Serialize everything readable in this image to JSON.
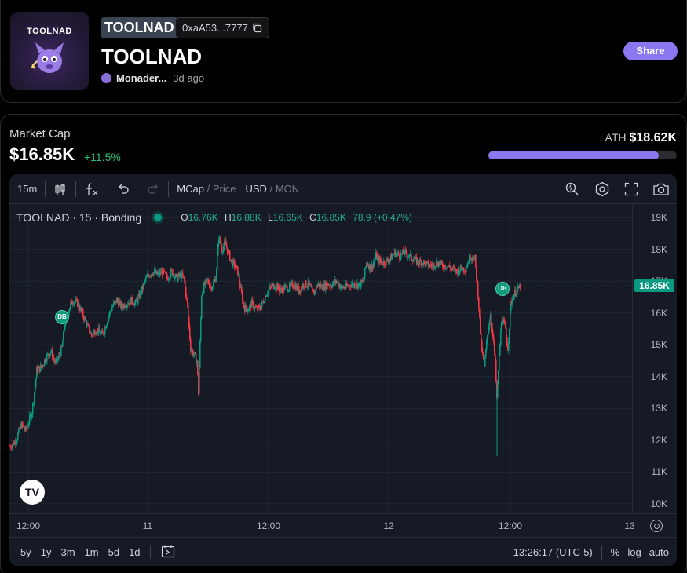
{
  "token": {
    "logo_text": "TOOLNAD",
    "ticker": "TOOLNAD",
    "address": "0xaA53...7777",
    "name": "TOOLNAD",
    "creator": "Monader...",
    "age": "3d ago",
    "share_label": "Share"
  },
  "market": {
    "label": "Market Cap",
    "value": "$16.85K",
    "change": "+11.5%",
    "ath_label": "ATH",
    "ath_value": "$18.62K",
    "ath_progress": 0.905,
    "accent": "#8a78f0",
    "up_color": "#089981",
    "down_color": "#f23645"
  },
  "toolbar": {
    "interval": "15m",
    "mcap": "MCap",
    "price": "Price",
    "usd": "USD",
    "mon": "MON",
    "slash": "/"
  },
  "legend": {
    "title": "TOOLNAD · 15 · Bonding",
    "o_label": "O",
    "o": "16.76K",
    "h_label": "H",
    "h": "16.88K",
    "l_label": "L",
    "l": "16.65K",
    "c_label": "C",
    "c": "16.85K",
    "change": "78.9 (+0.47%)"
  },
  "chart_data": {
    "type": "candlestick",
    "y_unit": "K",
    "ylim": [
      9.7,
      19.4
    ],
    "yticks": [
      "19K",
      "18K",
      "17K",
      "16K",
      "15K",
      "14K",
      "13K",
      "12K",
      "11K",
      "10K"
    ],
    "ytick_values": [
      19,
      18,
      17,
      16,
      15,
      14,
      13,
      12,
      11,
      10
    ],
    "xticks": [
      "12:00",
      "11",
      "12:00",
      "12",
      "12:00",
      "13"
    ],
    "last_price_label": "16.85K",
    "last_price": 16.85,
    "markers": [
      "DB",
      "DB"
    ],
    "close_path": [
      [
        0,
        11.8
      ],
      [
        8,
        12.0
      ],
      [
        14,
        12.5
      ],
      [
        20,
        12.3
      ],
      [
        28,
        12.9
      ],
      [
        32,
        13.7
      ],
      [
        34,
        14.2
      ],
      [
        40,
        14.3
      ],
      [
        46,
        14.6
      ],
      [
        52,
        14.8
      ],
      [
        58,
        14.4
      ],
      [
        62,
        14.6
      ],
      [
        66,
        14.9
      ],
      [
        70,
        15.7
      ],
      [
        76,
        16.2
      ],
      [
        80,
        16.4
      ],
      [
        86,
        16.3
      ],
      [
        92,
        16.0
      ],
      [
        98,
        15.6
      ],
      [
        104,
        15.3
      ],
      [
        110,
        15.5
      ],
      [
        118,
        15.3
      ],
      [
        124,
        15.8
      ],
      [
        130,
        16.2
      ],
      [
        136,
        16.4
      ],
      [
        142,
        16.2
      ],
      [
        148,
        16.3
      ],
      [
        154,
        16.4
      ],
      [
        160,
        16.3
      ],
      [
        166,
        16.6
      ],
      [
        172,
        17.0
      ],
      [
        176,
        17.2
      ],
      [
        182,
        17.3
      ],
      [
        188,
        17.2
      ],
      [
        194,
        17.3
      ],
      [
        200,
        17.1
      ],
      [
        206,
        17.3
      ],
      [
        212,
        17.1
      ],
      [
        218,
        17.2
      ],
      [
        222,
        17.0
      ],
      [
        226,
        16.2
      ],
      [
        230,
        14.9
      ],
      [
        234,
        14.7
      ],
      [
        238,
        14.5
      ],
      [
        240,
        13.5
      ],
      [
        244,
        16.6
      ],
      [
        248,
        16.9
      ],
      [
        252,
        17.0
      ],
      [
        256,
        16.8
      ],
      [
        262,
        17.1
      ],
      [
        266,
        18.4
      ],
      [
        270,
        18.0
      ],
      [
        274,
        18.2
      ],
      [
        278,
        17.9
      ],
      [
        282,
        17.6
      ],
      [
        286,
        17.5
      ],
      [
        290,
        17.3
      ],
      [
        294,
        16.7
      ],
      [
        298,
        16.2
      ],
      [
        302,
        16.1
      ],
      [
        308,
        16.3
      ],
      [
        314,
        16.1
      ],
      [
        320,
        16.2
      ],
      [
        326,
        16.6
      ],
      [
        332,
        16.8
      ],
      [
        338,
        16.9
      ],
      [
        344,
        16.7
      ],
      [
        350,
        16.8
      ],
      [
        356,
        16.8
      ],
      [
        362,
        16.9
      ],
      [
        368,
        16.7
      ],
      [
        374,
        16.9
      ],
      [
        380,
        16.9
      ],
      [
        386,
        16.6
      ],
      [
        392,
        16.9
      ],
      [
        398,
        16.8
      ],
      [
        404,
        16.9
      ],
      [
        410,
        16.9
      ],
      [
        416,
        17.0
      ],
      [
        422,
        16.8
      ],
      [
        428,
        16.8
      ],
      [
        434,
        16.9
      ],
      [
        440,
        16.9
      ],
      [
        446,
        16.9
      ],
      [
        450,
        17.0
      ],
      [
        454,
        17.6
      ],
      [
        460,
        17.4
      ],
      [
        466,
        17.8
      ],
      [
        472,
        17.6
      ],
      [
        478,
        17.6
      ],
      [
        484,
        17.7
      ],
      [
        490,
        17.9
      ],
      [
        496,
        17.8
      ],
      [
        502,
        17.9
      ],
      [
        508,
        17.8
      ],
      [
        514,
        17.7
      ],
      [
        520,
        17.6
      ],
      [
        526,
        17.6
      ],
      [
        532,
        17.5
      ],
      [
        538,
        17.5
      ],
      [
        544,
        17.6
      ],
      [
        550,
        17.5
      ],
      [
        556,
        17.5
      ],
      [
        562,
        17.4
      ],
      [
        568,
        17.3
      ],
      [
        574,
        17.4
      ],
      [
        580,
        17.4
      ],
      [
        586,
        17.8
      ],
      [
        592,
        17.7
      ],
      [
        596,
        16.6
      ],
      [
        598,
        15.8
      ],
      [
        600,
        15.0
      ],
      [
        604,
        14.3
      ],
      [
        608,
        15.3
      ],
      [
        612,
        16.0
      ],
      [
        616,
        15.0
      ],
      [
        618,
        14.4
      ],
      [
        620,
        13.3
      ],
      [
        622,
        14.2
      ],
      [
        626,
        15.8
      ],
      [
        630,
        15.6
      ],
      [
        634,
        14.9
      ],
      [
        638,
        16.3
      ],
      [
        642,
        16.6
      ],
      [
        646,
        16.7
      ],
      [
        650,
        16.85
      ]
    ]
  },
  "time_axis": {
    "t1": "12:00",
    "t2": "11",
    "t3": "12:00",
    "t4": "12",
    "t5": "12:00",
    "t6": "13"
  },
  "bottom": {
    "ranges": [
      "5y",
      "1y",
      "3m",
      "1m",
      "5d",
      "1d"
    ],
    "clock": "13:26:17 (UTC-5)",
    "percent": "%",
    "log": "log",
    "auto": "auto"
  },
  "tv_logo": "TV"
}
